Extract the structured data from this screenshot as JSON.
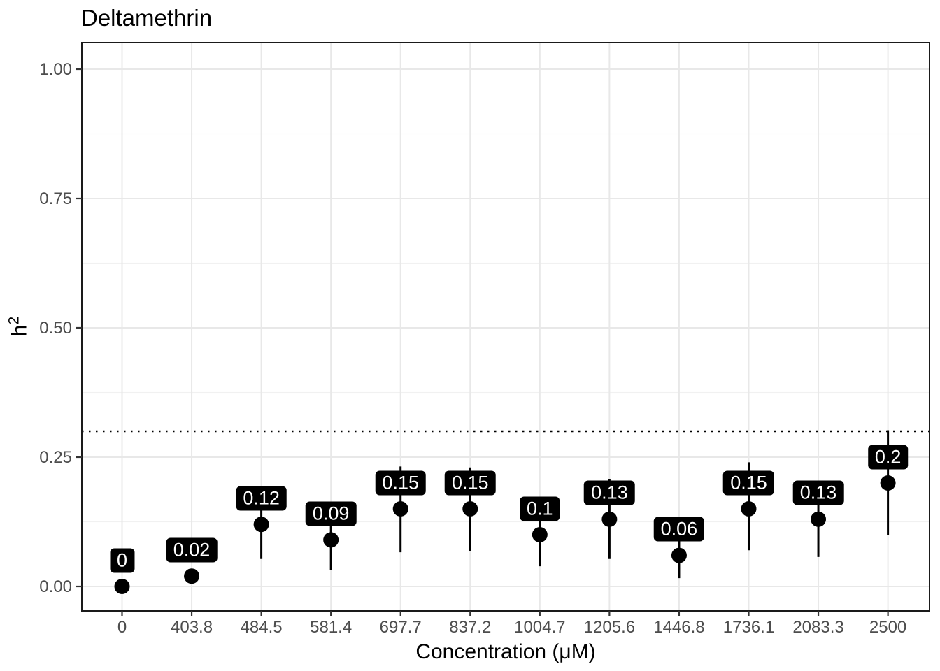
{
  "chart_data": {
    "type": "scatter",
    "title": "Deltamethrin",
    "xlabel": "Concentration (μM)",
    "ylabel": "h^2",
    "ylabel_base": "h",
    "ylabel_sup": "2",
    "categories": [
      "0",
      "403.8",
      "484.5",
      "581.4",
      "697.7",
      "837.2",
      "1004.7",
      "1205.6",
      "1446.8",
      "1736.1",
      "2083.3",
      "2500"
    ],
    "values": [
      0,
      0.02,
      0.12,
      0.09,
      0.15,
      0.15,
      0.1,
      0.13,
      0.06,
      0.15,
      0.13,
      0.2
    ],
    "point_labels": [
      "0",
      "0.02",
      "0.12",
      "0.09",
      "0.15",
      "0.15",
      "0.1",
      "0.13",
      "0.06",
      "0.15",
      "0.13",
      "0.2"
    ],
    "error_low": [
      0,
      0.02,
      0.053,
      0.032,
      0.066,
      0.069,
      0.039,
      0.053,
      0.016,
      0.07,
      0.057,
      0.099
    ],
    "error_high": [
      0,
      0.02,
      0.19,
      0.148,
      0.232,
      0.23,
      0.161,
      0.207,
      0.104,
      0.24,
      0.203,
      0.302
    ],
    "reference_line_y": 0.3,
    "reference_line_style": "dotted",
    "y_ticks": [
      "0.00",
      "0.25",
      "0.50",
      "0.75",
      "1.00"
    ],
    "y_tick_values": [
      0,
      0.25,
      0.5,
      0.75,
      1.0
    ],
    "ylim": [
      -0.047,
      1.051
    ],
    "grid": true,
    "legend": "none",
    "colors": {
      "point": "#000000",
      "error_bar": "#000000",
      "label_bg": "#000000",
      "label_text": "#ffffff",
      "grid_major": "#e8e8e8",
      "grid_minor": "#f1f1f1",
      "panel_border": "#1a1a1a",
      "tick_mark": "#333333",
      "axis_text": "#4d4d4d",
      "background": "#ffffff"
    }
  }
}
